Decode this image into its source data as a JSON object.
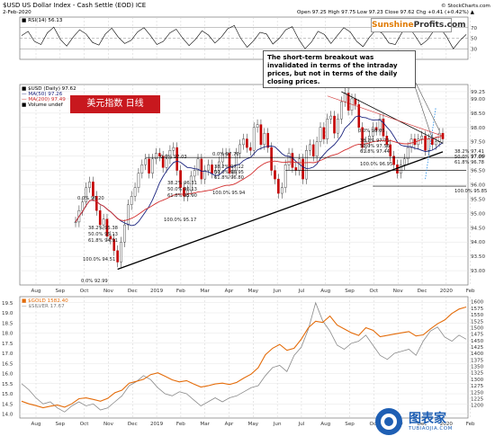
{
  "header": {
    "title": "$USD US Dollar Index - Cash Settle (EOD) ICE",
    "date": "2-Feb-2020",
    "quote": "Open 97.25   High 97.75   Low 97.23   Close 97.62   Chg +0.41 (+0.42%) ▲",
    "source": "© StockCharts.com"
  },
  "brand": {
    "sun": "Sunshine",
    "pro": "Profits.com"
  },
  "callout": "The short-term breakout was invalidated in terms of the intraday prices, but not in terms of the daily closing prices.",
  "cn_label": "美元指数   日线",
  "watermark": {
    "main": "图表家",
    "sub": "TUBIAOJIA.COM"
  },
  "rsi_legend": "■ RSI(14) 56.13",
  "main_legend": {
    "price": "■ $USD (Daily) 97.62",
    "ma50": "— MA(50) 97.26",
    "ma200": "— MA(200) 97.49",
    "volume": "■ Volume undef"
  },
  "bottom_legend": {
    "gold": "■ $GOLD 1582.40",
    "silver": "— $SILVER 17.67"
  },
  "x_labels": [
    "Aug",
    "Sep",
    "Oct",
    "Nov",
    "Dec",
    "2019",
    "Feb",
    "Mar",
    "Apr",
    "May",
    "Jun",
    "Jul",
    "Aug",
    "Sep",
    "Oct",
    "Nov",
    "Dec",
    "2020",
    "Feb"
  ],
  "fib_labels": [
    {
      "t": "0.0% 96.20"
    },
    {
      "t": "38.2% 95.38"
    },
    {
      "t": "50.0% 95.13"
    },
    {
      "t": "61.8% 94.91"
    },
    {
      "t": "100.0% 94.51"
    },
    {
      "t": "0.0% 97.03"
    },
    {
      "t": "38.2% 96.31"
    },
    {
      "t": "50.0% 96.13"
    },
    {
      "t": "61.8% 95.90"
    },
    {
      "t": "100.0% 95.17"
    },
    {
      "t": "0.0% 97.70"
    },
    {
      "t": "38.2% 97.12"
    },
    {
      "t": "50.0% 96.95"
    },
    {
      "t": "61.8% 96.80"
    },
    {
      "t": "100.0% 95.94"
    },
    {
      "t": "0.0% 98.05"
    },
    {
      "t": "38.2% 97.71"
    },
    {
      "t": "50.0% 97.56"
    },
    {
      "t": "61.8% 97.44"
    },
    {
      "t": "100.0% 96.95"
    },
    {
      "t": "38.2% 97.41"
    },
    {
      "t": "50.0% 97.09"
    },
    {
      "t": "61.8% 96.78"
    },
    {
      "t": "100.0% 95.85"
    },
    {
      "t": "0.0% 92.99"
    }
  ],
  "chart_data": [
    {
      "type": "line",
      "panel": "rsi",
      "name": "RSI(14)",
      "ylim": [
        10,
        90
      ],
      "yticks": [
        30,
        50,
        70
      ],
      "values": [
        55,
        63,
        44,
        38,
        60,
        71,
        48,
        35,
        52,
        66,
        58,
        42,
        37,
        58,
        69,
        52,
        40,
        46,
        62,
        70,
        55,
        38,
        44,
        60,
        67,
        50,
        36,
        48,
        64,
        56,
        41,
        52,
        68,
        74,
        50,
        33,
        45,
        61,
        58,
        39,
        50,
        66,
        72,
        48,
        30,
        43,
        63,
        57,
        40,
        55,
        70,
        62,
        44,
        34,
        52,
        66,
        59,
        41,
        38,
        60,
        73,
        56,
        37,
        47,
        65,
        69,
        52,
        30,
        45,
        57
      ]
    },
    {
      "type": "candlestick",
      "panel": "main",
      "name": "$USD (Daily)",
      "x_range": [
        "2018-08",
        "2020-02"
      ],
      "ylim": [
        92.5,
        99.5
      ],
      "yticks": [
        93.0,
        93.5,
        94.0,
        94.5,
        95.0,
        95.5,
        96.0,
        96.5,
        97.0,
        97.5,
        98.0,
        98.5,
        99.0,
        99.25
      ],
      "closes": [
        94.7,
        95.1,
        95.4,
        95.9,
        96.1,
        95.6,
        95.1,
        94.6,
        94.8,
        94.2,
        94.1,
        93.7,
        93.3,
        94.0,
        94.6,
        95.3,
        95.6,
        95.9,
        96.4,
        96.7,
        96.9,
        96.4,
        96.9,
        97.1,
        97.0,
        96.6,
        96.9,
        97.2,
        97.3,
        96.5,
        95.9,
        95.6,
        95.8,
        96.3,
        96.5,
        96.9,
        96.2,
        96.5,
        96.7,
        96.4,
        96.5,
        96.8,
        97.1,
        97.1,
        96.4,
        96.5,
        97.1,
        97.4,
        97.6,
        97.3,
        97.2,
        98.0,
        98.1,
        97.4,
        97.8,
        97.3,
        96.5,
        96.2,
        95.7,
        95.9,
        96.7,
        97.1,
        96.6,
        96.5,
        96.9,
        96.2,
        97.2,
        97.4,
        97.0,
        97.5,
        98.0,
        97.6,
        98.3,
        98.4,
        97.8,
        98.3,
        98.9,
        99.2,
        98.6,
        99.0,
        98.8,
        98.0,
        97.3,
        97.5,
        97.7,
        98.0,
        97.9,
        98.3,
        97.7,
        97.4,
        97.0,
        96.7,
        96.4,
        96.7,
        96.9,
        97.3,
        97.6,
        97.4,
        97.6,
        97.7,
        97.2,
        97.6,
        97.4,
        97.5,
        97.8,
        97.6
      ],
      "ma50_approx": [
        94.0,
        97.3
      ],
      "ma200_approx": [
        93.6,
        97.5
      ]
    },
    {
      "type": "line",
      "panel": "bottom",
      "series": [
        {
          "name": "$GOLD",
          "axis": "right",
          "ylim": [
            1150,
            1620
          ],
          "yticks": [
            1200,
            1225,
            1250,
            1275,
            1300,
            1325,
            1350,
            1375,
            1400,
            1425,
            1450,
            1475,
            1500,
            1525,
            1550,
            1575,
            1600
          ],
          "values": [
            1215,
            1205,
            1198,
            1190,
            1196,
            1200,
            1192,
            1205,
            1225,
            1228,
            1222,
            1215,
            1226,
            1248,
            1258,
            1285,
            1292,
            1300,
            1318,
            1325,
            1312,
            1298,
            1290,
            1295,
            1282,
            1270,
            1275,
            1282,
            1285,
            1280,
            1288,
            1305,
            1320,
            1345,
            1395,
            1420,
            1435,
            1412,
            1420,
            1455,
            1500,
            1525,
            1520,
            1545,
            1510,
            1495,
            1480,
            1470,
            1500,
            1490,
            1465,
            1470,
            1475,
            1480,
            1485,
            1468,
            1472,
            1495,
            1515,
            1530,
            1555,
            1572,
            1580
          ]
        },
        {
          "name": "$SILVER",
          "axis": "left",
          "ylim": [
            13.8,
            19.8
          ],
          "yticks": [
            14.0,
            14.5,
            15.0,
            15.5,
            16.0,
            16.5,
            17.0,
            17.5,
            18.0,
            18.5,
            19.0,
            19.5
          ],
          "values": [
            15.5,
            15.2,
            14.8,
            14.5,
            14.6,
            14.3,
            14.1,
            14.4,
            14.6,
            14.4,
            14.5,
            14.2,
            14.3,
            14.6,
            14.9,
            15.4,
            15.6,
            15.9,
            15.7,
            15.3,
            15.0,
            14.9,
            15.1,
            15.0,
            14.7,
            14.4,
            14.6,
            14.8,
            14.6,
            14.8,
            14.9,
            15.1,
            15.3,
            15.4,
            15.9,
            16.3,
            16.4,
            16.1,
            16.9,
            17.3,
            18.2,
            19.5,
            18.6,
            18.1,
            17.4,
            17.2,
            17.5,
            17.6,
            17.9,
            17.4,
            16.9,
            16.7,
            17.0,
            17.1,
            17.2,
            16.9,
            17.6,
            18.1,
            18.3,
            17.8,
            17.6,
            17.9,
            17.7
          ]
        }
      ]
    }
  ]
}
